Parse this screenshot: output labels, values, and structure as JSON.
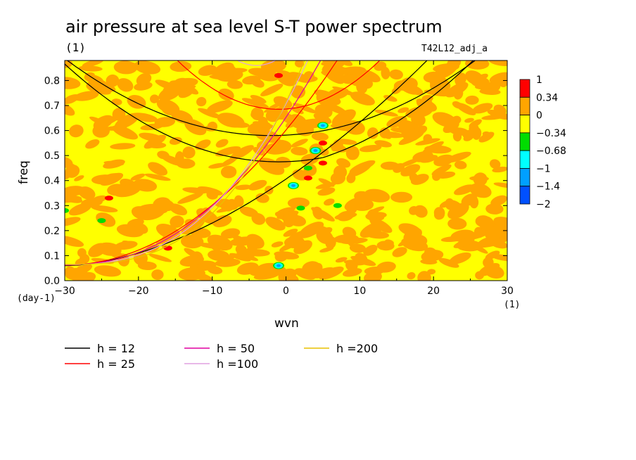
{
  "chart_data": {
    "type": "heatmap",
    "title": "air pressure at sea level S-T power spectrum",
    "subtitle_left": "(1)",
    "subtitle_right": "T42L12_adj_a",
    "xlabel": "wvn",
    "ylabel": "freq",
    "x_unit": "(1)",
    "y_unit": "(day-1)",
    "xlim": [
      -30,
      30
    ],
    "ylim": [
      0,
      0.88
    ],
    "x_ticks": [
      -30,
      -20,
      -10,
      0,
      10,
      20,
      30
    ],
    "y_ticks": [
      0.0,
      0.1,
      0.2,
      0.3,
      0.4,
      0.5,
      0.6,
      0.7,
      0.8
    ],
    "y_tick_labels": [
      "0.0",
      "0.1",
      "0.2",
      "0.3",
      "0.4",
      "0.5",
      "0.6",
      "0.7",
      "0.8"
    ],
    "colorbar": {
      "levels": [
        "1",
        "0.34",
        "0",
        "-0.34",
        "-0.68",
        "-1",
        "-1.4",
        "-2"
      ],
      "colors": [
        "#ff0000",
        "#ffa500",
        "#ffff00",
        "#00dd00",
        "#00ffff",
        "#00a0ff",
        "#0050ff"
      ]
    },
    "field_description_colors": {
      "dominant_low": "#ffff00",
      "dominant_high": "#ffa500"
    },
    "anomalies": [
      {
        "x": 5,
        "y": 0.62,
        "level": "-1"
      },
      {
        "x": 4,
        "y": 0.52,
        "level": "-1"
      },
      {
        "x": 1,
        "y": 0.38,
        "level": "-1"
      },
      {
        "x": 3,
        "y": 0.45,
        "level": "-0.34"
      },
      {
        "x": 2,
        "y": 0.29,
        "level": "-0.34"
      },
      {
        "x": 7,
        "y": 0.3,
        "level": "-0.34"
      },
      {
        "x": -25,
        "y": 0.24,
        "level": "-0.34"
      },
      {
        "x": -30,
        "y": 0.28,
        "level": "-0.34"
      },
      {
        "x": -1,
        "y": 0.06,
        "level": "-1"
      },
      {
        "x": -1,
        "y": 0.82,
        "level": "1"
      },
      {
        "x": 5,
        "y": 0.55,
        "level": "1"
      },
      {
        "x": 5,
        "y": 0.47,
        "level": "1"
      },
      {
        "x": 3,
        "y": 0.41,
        "level": "1"
      },
      {
        "x": -24,
        "y": 0.33,
        "level": "1"
      },
      {
        "x": -16,
        "y": 0.13,
        "level": "1"
      }
    ],
    "dispersion_curves": [
      {
        "name": "h = 12",
        "color": "#000000",
        "h": 12
      },
      {
        "name": "h = 25",
        "color": "#ff0000",
        "h": 25
      },
      {
        "name": "h = 50",
        "color": "#e000a0",
        "h": 50
      },
      {
        "name": "h =100",
        "color": "#e0a0e0",
        "h": 100
      },
      {
        "name": "h =200",
        "color": "#e8c000",
        "h": 200
      }
    ]
  }
}
